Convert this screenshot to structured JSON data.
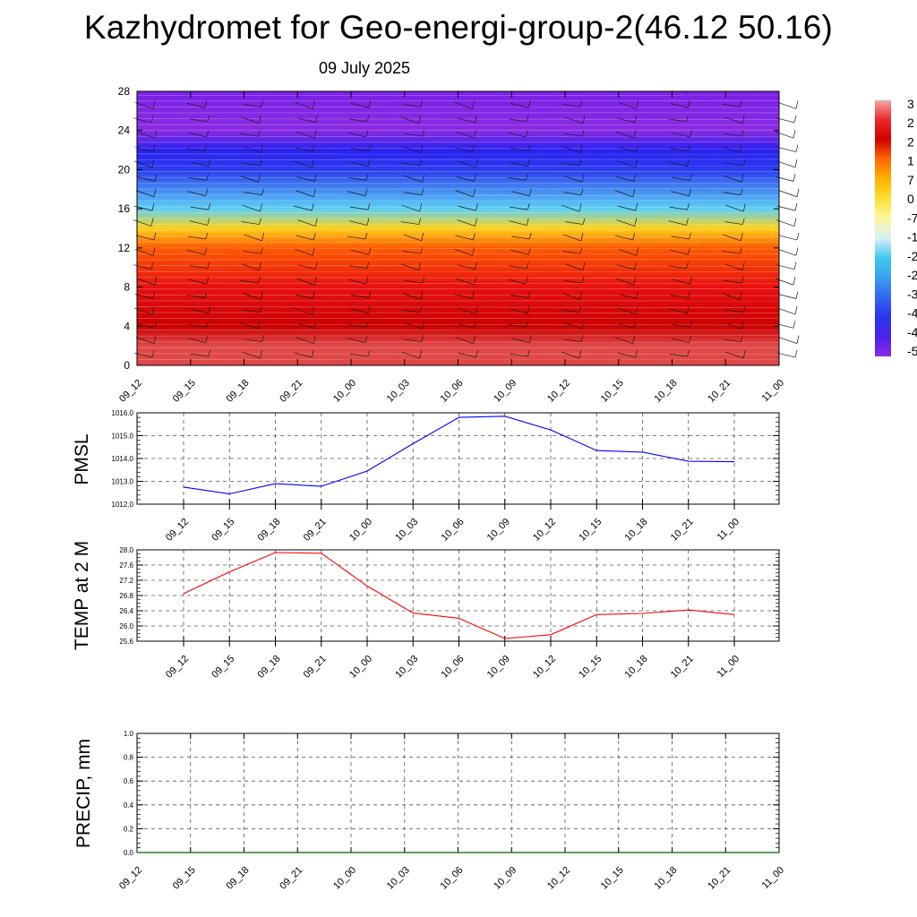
{
  "header": {
    "title": "Kazhydromet for Geo-energi-group-2(46.12 50.16)",
    "subtitle": "09 July 2025"
  },
  "chart_data": [
    {
      "type": "heatmap",
      "title": "",
      "time_labels": [
        "09_12",
        "09_15",
        "09_18",
        "09_21",
        "10_00",
        "10_03",
        "10_06",
        "10_09",
        "10_12",
        "10_15",
        "10_18",
        "10_21",
        "11_00"
      ],
      "ylim": [
        0,
        28
      ],
      "yticks": [
        0,
        4,
        8,
        12,
        16,
        20,
        24,
        28
      ],
      "colorbar_labels": [
        "3",
        "2",
        "2",
        "1",
        "7",
        "0",
        "-7",
        "-1",
        "-2",
        "-2",
        "-3",
        "-4",
        "-4",
        "-5"
      ],
      "colorbar_colors": [
        "#f4a6a6",
        "#e8282a",
        "#d40000",
        "#ff6a00",
        "#ffb300",
        "#ffe033",
        "#fff6a0",
        "#d8eef8",
        "#40c8f0",
        "#3aa0f0",
        "#3366ee",
        "#2a36ee",
        "#4a22f0",
        "#8a2be2"
      ],
      "temperature_profile": [
        {
          "height": 0,
          "temp": 32
        },
        {
          "height": 2,
          "temp": 33
        },
        {
          "height": 4,
          "temp": 29
        },
        {
          "height": 8,
          "temp": 20
        },
        {
          "height": 12,
          "temp": 8
        },
        {
          "height": 14,
          "temp": -8
        },
        {
          "height": 16,
          "temp": -25
        },
        {
          "height": 20,
          "temp": -40
        },
        {
          "height": 22,
          "temp": -48
        },
        {
          "height": 24,
          "temp": -52
        },
        {
          "height": 28,
          "temp": -56
        }
      ],
      "grid": false
    },
    {
      "type": "line",
      "ylabel": "PMSL",
      "categories": [
        "09_12",
        "09_15",
        "09_18",
        "09_21",
        "10_00",
        "10_03",
        "10_06",
        "10_09",
        "10_12",
        "10_15",
        "10_18",
        "10_21",
        "11_00"
      ],
      "series": [
        {
          "values": [
            1012.75,
            1012.45,
            1012.9,
            1012.78,
            1013.45,
            1014.65,
            1015.8,
            1015.85,
            1015.25,
            1014.35,
            1014.28,
            1013.88,
            1013.86
          ],
          "color": "#0000ff"
        }
      ],
      "ylim": [
        1012.0,
        1016.0
      ],
      "ytick_labels": [
        "1012.0",
        "1013.0",
        "1014.0",
        "1015.0",
        "1016.0"
      ],
      "grid": true
    },
    {
      "type": "line",
      "ylabel": "TEMP at 2 M",
      "categories": [
        "09_12",
        "09_15",
        "09_18",
        "09_21",
        "10_00",
        "10_03",
        "10_06",
        "10_09",
        "10_12",
        "10_15",
        "10_18",
        "10_21",
        "11_00"
      ],
      "series": [
        {
          "values": [
            26.85,
            27.42,
            27.93,
            27.91,
            27.05,
            26.34,
            26.2,
            25.67,
            25.77,
            26.3,
            26.33,
            26.42,
            26.3
          ],
          "color": "#ff0000"
        }
      ],
      "ylim": [
        25.6,
        28.0
      ],
      "ytick_labels": [
        "25.6",
        "26.0",
        "26.4",
        "26.8",
        "27.2",
        "27.6",
        "28.0"
      ],
      "grid": true
    },
    {
      "type": "line",
      "ylabel": "PRECIP, mm",
      "categories": [
        "09_12",
        "09_15",
        "09_18",
        "09_21",
        "10_00",
        "10_03",
        "10_06",
        "10_09",
        "10_12",
        "10_15",
        "10_18",
        "10_21",
        "11_00"
      ],
      "series": [
        {
          "values": [
            0,
            0,
            0,
            0,
            0,
            0,
            0,
            0,
            0,
            0,
            0,
            0,
            0
          ],
          "color": "#006400"
        }
      ],
      "ylim": [
        0.0,
        1.0
      ],
      "ytick_labels": [
        "0.0",
        "0.2",
        "0.4",
        "0.6",
        "0.8",
        "1.0"
      ],
      "grid": true
    }
  ]
}
